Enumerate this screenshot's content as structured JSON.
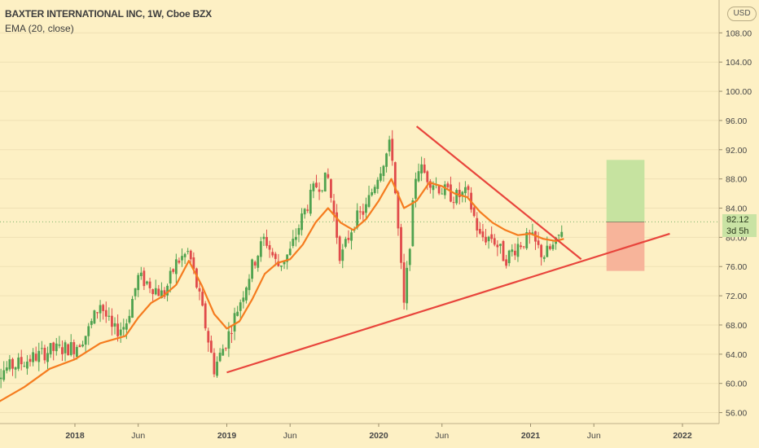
{
  "header": {
    "title": "BAXTER INTERNATIONAL INC, 1W, Cboe BZX",
    "indicator": "EMA (20, close)",
    "currency": "USD"
  },
  "last": {
    "price": "82.12",
    "countdown": "3d 5h"
  },
  "colors": {
    "background": "#fdf0c4",
    "up": "#4fa24f",
    "down": "#e04a4a",
    "ema": "#f57c1f",
    "trendline": "#e8453c",
    "profit_zone": "#c6e3a0",
    "loss_zone": "#f7b49a"
  },
  "chart_data": {
    "type": "candlestick",
    "title": "BAXTER INTERNATIONAL INC, 1W, Cboe BZX",
    "x_ticks": [
      "2018",
      "Jun",
      "2019",
      "Jun",
      "2020",
      "Jun",
      "2021",
      "Jun",
      "2022"
    ],
    "x_tick_dates": [
      "2018-01",
      "2018-06",
      "2019-01",
      "2019-06",
      "2020-01",
      "2020-06",
      "2021-01",
      "2021-06",
      "2022-01"
    ],
    "y_ticks": [
      "56.00",
      "60.00",
      "64.00",
      "68.00",
      "72.00",
      "76.00",
      "80.00",
      "84.00",
      "88.00",
      "92.00",
      "96.00",
      "100.00",
      "104.00",
      "108.00"
    ],
    "ylim": [
      54.5,
      112.5
    ],
    "last_price": 82.12,
    "price_path": [
      [
        "2017-06",
        61
      ],
      [
        "2017-09",
        63
      ],
      [
        "2017-11",
        64.5
      ],
      [
        "2018-01",
        65
      ],
      [
        "2018-02",
        67
      ],
      [
        "2018-03",
        71
      ],
      [
        "2018-04",
        67
      ],
      [
        "2018-05",
        68
      ],
      [
        "2018-06",
        74.5
      ],
      [
        "2018-07",
        73.5
      ],
      [
        "2018-08",
        72
      ],
      [
        "2018-09",
        76.5
      ],
      [
        "2018-10",
        78
      ],
      [
        "2018-11",
        70.5
      ],
      [
        "2018-12",
        62
      ],
      [
        "2019-01",
        66
      ],
      [
        "2019-02",
        71
      ],
      [
        "2019-03",
        76
      ],
      [
        "2019-04",
        80
      ],
      [
        "2019-05",
        76
      ],
      [
        "2019-06",
        78
      ],
      [
        "2019-07",
        83
      ],
      [
        "2019-08",
        87
      ],
      [
        "2019-09",
        88
      ],
      [
        "2019-10",
        77
      ],
      [
        "2019-11",
        82
      ],
      [
        "2019-12",
        84
      ],
      [
        "2020-01",
        89
      ],
      [
        "2020-02",
        93
      ],
      [
        "2020-03",
        70.5
      ],
      [
        "2020-04",
        90
      ],
      [
        "2020-05",
        88
      ],
      [
        "2020-06",
        86.5
      ],
      [
        "2020-07",
        85.5
      ],
      [
        "2020-08",
        86
      ],
      [
        "2020-09",
        80
      ],
      [
        "2020-10",
        80
      ],
      [
        "2020-11",
        77
      ],
      [
        "2020-12",
        79
      ],
      [
        "2021-01",
        80
      ],
      [
        "2021-02",
        77.5
      ],
      [
        "2021-03",
        79
      ],
      [
        "2021-03-20",
        82.12
      ]
    ],
    "ema_path": [
      [
        "2017-06",
        56.5
      ],
      [
        "2017-09",
        59.5
      ],
      [
        "2017-11",
        62
      ],
      [
        "2018-01",
        63.3
      ],
      [
        "2018-03",
        65.5
      ],
      [
        "2018-04",
        66
      ],
      [
        "2018-05",
        66.5
      ],
      [
        "2018-06",
        69
      ],
      [
        "2018-07",
        71
      ],
      [
        "2018-08",
        72
      ],
      [
        "2018-09",
        73.5
      ],
      [
        "2018-10",
        76.8
      ],
      [
        "2018-11",
        73.5
      ],
      [
        "2018-12",
        69.5
      ],
      [
        "2019-01",
        67.5
      ],
      [
        "2019-02",
        68.5
      ],
      [
        "2019-03",
        71.5
      ],
      [
        "2019-04",
        75
      ],
      [
        "2019-05",
        76.5
      ],
      [
        "2019-06",
        77
      ],
      [
        "2019-07",
        79
      ],
      [
        "2019-08",
        82
      ],
      [
        "2019-09",
        84
      ],
      [
        "2019-10",
        82
      ],
      [
        "2019-11",
        81
      ],
      [
        "2019-12",
        82.5
      ],
      [
        "2020-01",
        85
      ],
      [
        "2020-02",
        88
      ],
      [
        "2020-03",
        84
      ],
      [
        "2020-04",
        85
      ],
      [
        "2020-05",
        87.5
      ],
      [
        "2020-06",
        87
      ],
      [
        "2020-07",
        86
      ],
      [
        "2020-08",
        85.5
      ],
      [
        "2020-09",
        83.5
      ],
      [
        "2020-10",
        82
      ],
      [
        "2020-11",
        81
      ],
      [
        "2020-12",
        80.3
      ],
      [
        "2021-01",
        80.5
      ],
      [
        "2021-02",
        79.8
      ],
      [
        "2021-03",
        79.5
      ],
      [
        "2021-03-20",
        79.8
      ]
    ],
    "trendlines": [
      {
        "name": "support",
        "from": [
          "2019-01",
          61.5
        ],
        "to": [
          "2021-12",
          80.5
        ]
      },
      {
        "name": "resistance",
        "from": [
          "2020-04",
          95.2
        ],
        "to": [
          "2021-05",
          77
        ]
      }
    ],
    "position": {
      "start": "2021-07",
      "end": "2021-10",
      "entry": 82.1,
      "target": 90.6,
      "stop": 75.4
    }
  }
}
